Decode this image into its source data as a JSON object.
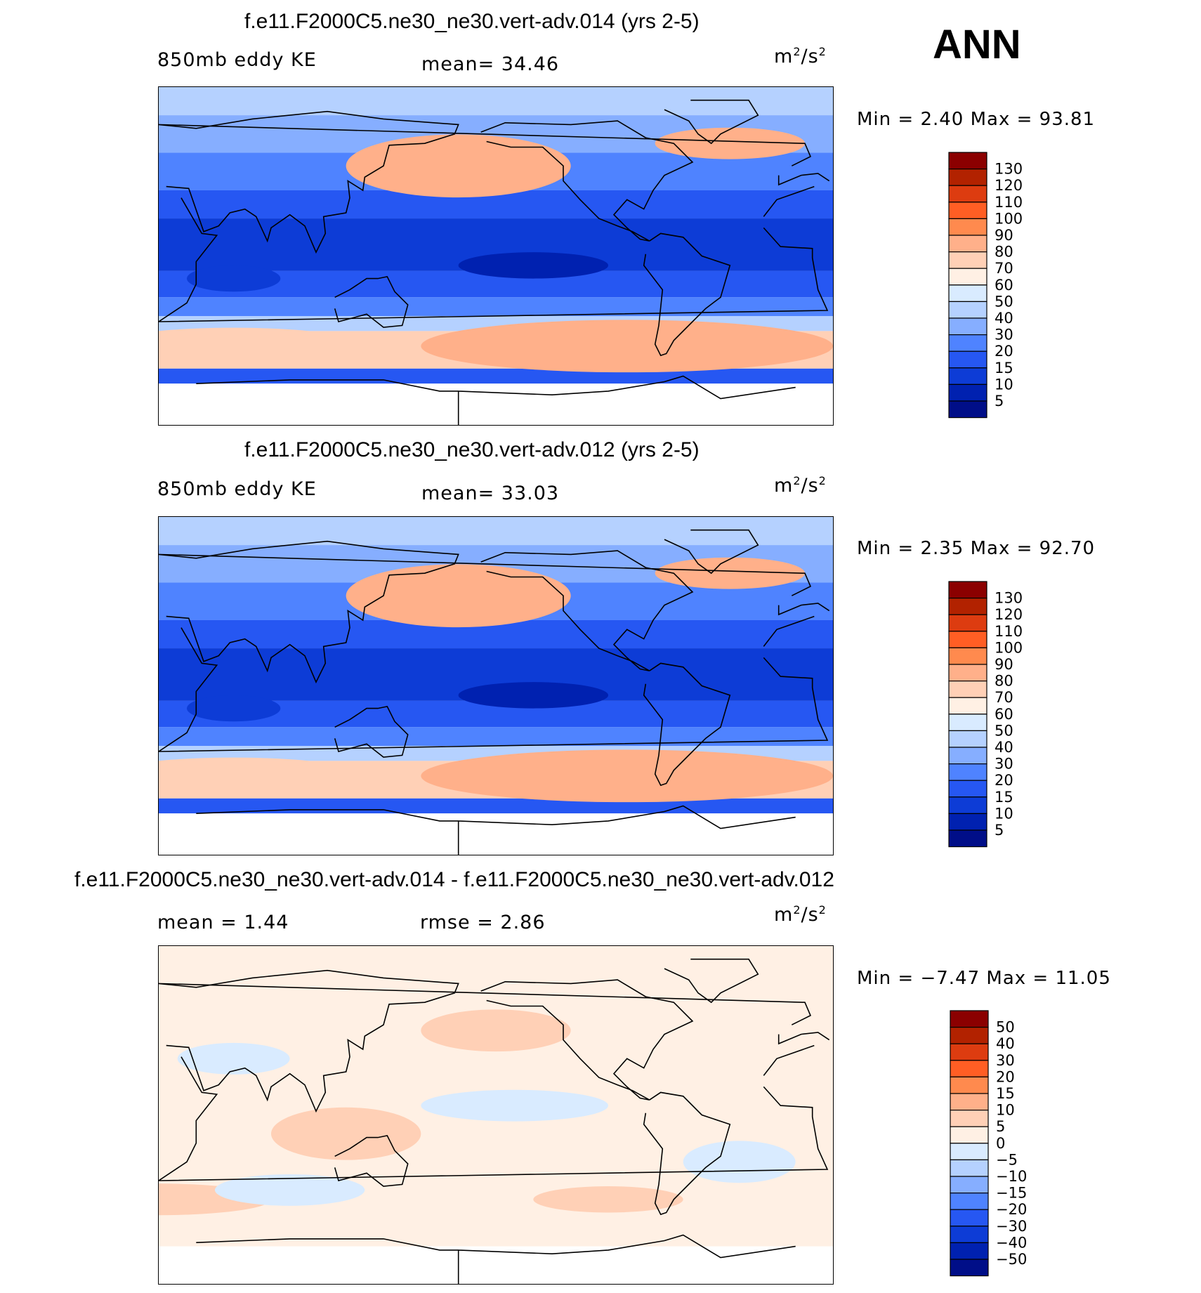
{
  "season": "ANN",
  "panels": [
    {
      "title": "f.e11.F2000C5.ne30_ne30.vert-adv.014 (yrs 2-5)",
      "left_label": "850mb eddy KE",
      "center_label": "mean=   34.46",
      "units_base": "m",
      "units_exp1": "2",
      "units_mid": "/s",
      "units_exp2": "2",
      "minmax": "Min =    2.40 Max =   93.81",
      "colorbar": {
        "levels": [
          "130",
          "120",
          "110",
          "100",
          "90",
          "80",
          "70",
          "60",
          "50",
          "40",
          "30",
          "20",
          "15",
          "10",
          "5"
        ],
        "colors": [
          "#8b0000",
          "#b22200",
          "#dd3c10",
          "#ff5e24",
          "#ff8a4e",
          "#ffb08a",
          "#ffd0b6",
          "#fff0e4",
          "#d9ebff",
          "#b5d1ff",
          "#86aeff",
          "#4f83ff",
          "#2657f2",
          "#0d3cd6",
          "#0021b0",
          "#000e88"
        ]
      },
      "map_scale": "abs"
    },
    {
      "title": "f.e11.F2000C5.ne30_ne30.vert-adv.012 (yrs 2-5)",
      "left_label": "850mb eddy KE",
      "center_label": "mean=   33.03",
      "units_base": "m",
      "units_exp1": "2",
      "units_mid": "/s",
      "units_exp2": "2",
      "minmax": "Min =    2.35 Max =   92.70",
      "colorbar": {
        "levels": [
          "130",
          "120",
          "110",
          "100",
          "90",
          "80",
          "70",
          "60",
          "50",
          "40",
          "30",
          "20",
          "15",
          "10",
          "5"
        ],
        "colors": [
          "#8b0000",
          "#b22200",
          "#dd3c10",
          "#ff5e24",
          "#ff8a4e",
          "#ffb08a",
          "#ffd0b6",
          "#fff0e4",
          "#d9ebff",
          "#b5d1ff",
          "#86aeff",
          "#4f83ff",
          "#2657f2",
          "#0d3cd6",
          "#0021b0",
          "#000e88"
        ]
      },
      "map_scale": "abs"
    },
    {
      "title": "f.e11.F2000C5.ne30_ne30.vert-adv.014 - f.e11.F2000C5.ne30_ne30.vert-adv.012",
      "left_label": "mean =    1.44",
      "center_label": "rmse =    2.86",
      "units_base": "m",
      "units_exp1": "2",
      "units_mid": "/s",
      "units_exp2": "2",
      "minmax": "Min =  −7.47 Max =   11.05",
      "colorbar": {
        "levels": [
          "50",
          "40",
          "30",
          "20",
          "15",
          "10",
          "5",
          "0",
          "−5",
          "−10",
          "−15",
          "−20",
          "−30",
          "−40",
          "−50"
        ],
        "colors": [
          "#8b0000",
          "#b22200",
          "#dd3c10",
          "#ff5e24",
          "#ff8a4e",
          "#ffb08a",
          "#ffd0b6",
          "#fff0e4",
          "#d9ebff",
          "#b5d1ff",
          "#86aeff",
          "#4f83ff",
          "#2657f2",
          "#0d3cd6",
          "#0021b0",
          "#000e88"
        ]
      },
      "map_scale": "diff"
    }
  ],
  "chart_data": [
    {
      "type": "heatmap",
      "title": "f.e11.F2000C5.ne30_ne30.vert-adv.014 (yrs 2-5)",
      "variable": "850mb eddy KE",
      "units": "m2/s2",
      "mean": 34.46,
      "min": 2.4,
      "max": 93.81,
      "contour_levels": [
        5,
        10,
        15,
        20,
        30,
        40,
        50,
        60,
        70,
        80,
        90,
        100,
        110,
        120,
        130
      ]
    },
    {
      "type": "heatmap",
      "title": "f.e11.F2000C5.ne30_ne30.vert-adv.012 (yrs 2-5)",
      "variable": "850mb eddy KE",
      "units": "m2/s2",
      "mean": 33.03,
      "min": 2.35,
      "max": 92.7,
      "contour_levels": [
        5,
        10,
        15,
        20,
        30,
        40,
        50,
        60,
        70,
        80,
        90,
        100,
        110,
        120,
        130
      ]
    },
    {
      "type": "heatmap",
      "title": "f.e11.F2000C5.ne30_ne30.vert-adv.014 - f.e11.F2000C5.ne30_ne30.vert-adv.012",
      "units": "m2/s2",
      "mean": 1.44,
      "rmse": 2.86,
      "min": -7.47,
      "max": 11.05,
      "contour_levels": [
        -50,
        -40,
        -30,
        -20,
        -15,
        -10,
        -5,
        0,
        5,
        10,
        15,
        20,
        30,
        40,
        50
      ]
    }
  ]
}
